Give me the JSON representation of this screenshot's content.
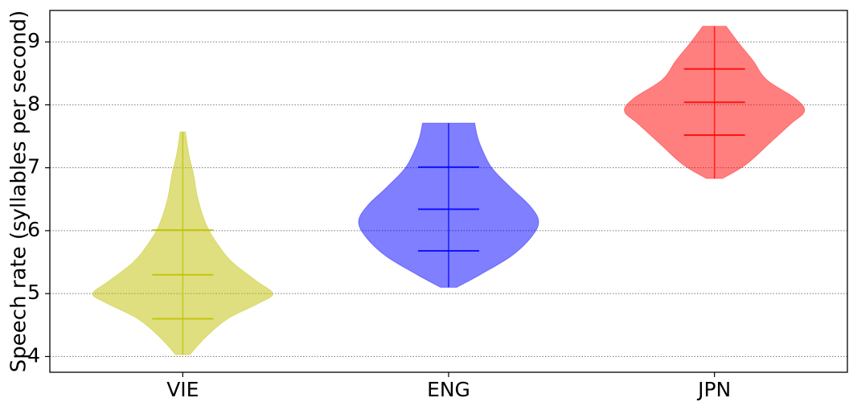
{
  "chart_data": {
    "type": "violin",
    "title": "",
    "xlabel": "",
    "ylabel": "Speech rate (syllables per second)",
    "categories": [
      "VIE",
      "ENG",
      "JPN"
    ],
    "ylim": [
      3.75,
      9.5
    ],
    "yticks": [
      4,
      5,
      6,
      7,
      8,
      9
    ],
    "grid": "horizontal dotted",
    "series": [
      {
        "category": "VIE",
        "color": "#bfbf00",
        "min": 4.03,
        "max": 7.57,
        "q1": 4.6,
        "median": 5.3,
        "q3": 6.01,
        "profile": [
          [
            4.03,
            0.08
          ],
          [
            4.3,
            0.25
          ],
          [
            4.6,
            0.5
          ],
          [
            4.85,
            0.85
          ],
          [
            5.0,
            1.0
          ],
          [
            5.2,
            0.82
          ],
          [
            5.5,
            0.55
          ],
          [
            5.8,
            0.38
          ],
          [
            6.1,
            0.26
          ],
          [
            6.5,
            0.17
          ],
          [
            6.9,
            0.12
          ],
          [
            7.2,
            0.07
          ],
          [
            7.57,
            0.03
          ]
        ]
      },
      {
        "category": "ENG",
        "color": "#0000ff",
        "min": 5.1,
        "max": 7.71,
        "q1": 5.68,
        "median": 6.34,
        "q3": 7.01,
        "profile": [
          [
            5.1,
            0.09
          ],
          [
            5.3,
            0.35
          ],
          [
            5.6,
            0.7
          ],
          [
            5.9,
            0.92
          ],
          [
            6.15,
            1.0
          ],
          [
            6.4,
            0.9
          ],
          [
            6.7,
            0.68
          ],
          [
            7.0,
            0.48
          ],
          [
            7.3,
            0.37
          ],
          [
            7.5,
            0.32
          ],
          [
            7.71,
            0.29
          ]
        ]
      },
      {
        "category": "JPN",
        "color": "#ff0000",
        "min": 6.83,
        "max": 9.25,
        "q1": 7.52,
        "median": 8.04,
        "q3": 8.57,
        "profile": [
          [
            6.83,
            0.09
          ],
          [
            7.05,
            0.35
          ],
          [
            7.4,
            0.62
          ],
          [
            7.7,
            0.85
          ],
          [
            7.9,
            1.0
          ],
          [
            8.1,
            0.9
          ],
          [
            8.4,
            0.58
          ],
          [
            8.7,
            0.43
          ],
          [
            9.0,
            0.26
          ],
          [
            9.25,
            0.13
          ]
        ]
      }
    ]
  }
}
